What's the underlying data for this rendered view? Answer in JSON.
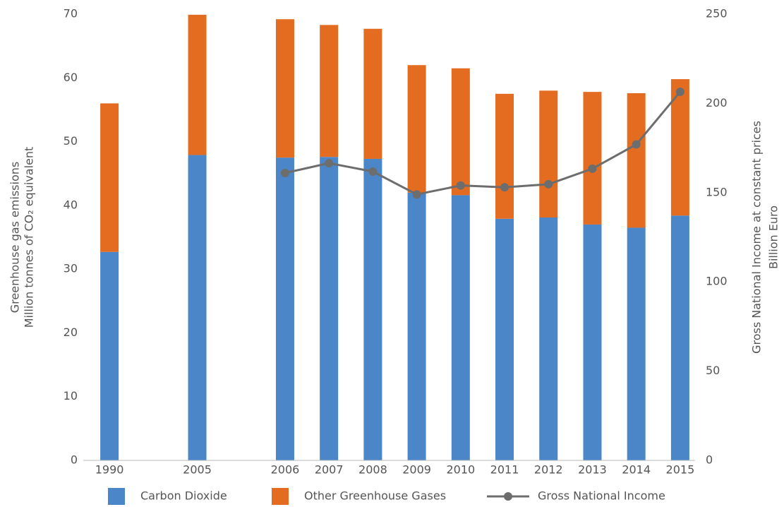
{
  "chart_data": {
    "type": "bar_line",
    "y_title": [
      "Greenhouse gas emissions",
      "Million tonnes of CO₂ equivalent"
    ],
    "y2_title": [
      "Gross National Income at constant prices",
      "Billion Euro"
    ],
    "categories": [
      "1990",
      null,
      "2005",
      null,
      "2006",
      "2007",
      "2008",
      "2009",
      "2010",
      "2011",
      "2012",
      "2013",
      "2014",
      "2015"
    ],
    "series": [
      {
        "name": "Carbon Dioxide",
        "color": "#4a86c8",
        "values": [
          32.7,
          null,
          47.9,
          null,
          47.5,
          47.6,
          47.3,
          42.0,
          41.6,
          37.9,
          38.1,
          37.0,
          36.5,
          38.4
        ]
      },
      {
        "name": "Other Greenhouse Gases",
        "color": "#e36c21",
        "values": [
          23.3,
          null,
          22.0,
          null,
          21.7,
          20.7,
          20.4,
          20.0,
          19.9,
          19.6,
          19.9,
          20.8,
          21.1,
          21.4
        ]
      },
      {
        "name": "Gross National Income",
        "color": "#6d6d6d",
        "axis": "y2",
        "type": "line",
        "values": [
          null,
          null,
          null,
          null,
          161,
          166.5,
          161.8,
          149,
          154,
          153,
          154.7,
          163.4,
          177,
          206.5
        ]
      }
    ],
    "ylim": [
      0,
      70
    ],
    "yticks": [
      0,
      10,
      20,
      30,
      40,
      50,
      60,
      70
    ],
    "y2lim": [
      0,
      250
    ],
    "y2ticks": [
      0,
      50,
      100,
      150,
      200,
      250
    ]
  }
}
